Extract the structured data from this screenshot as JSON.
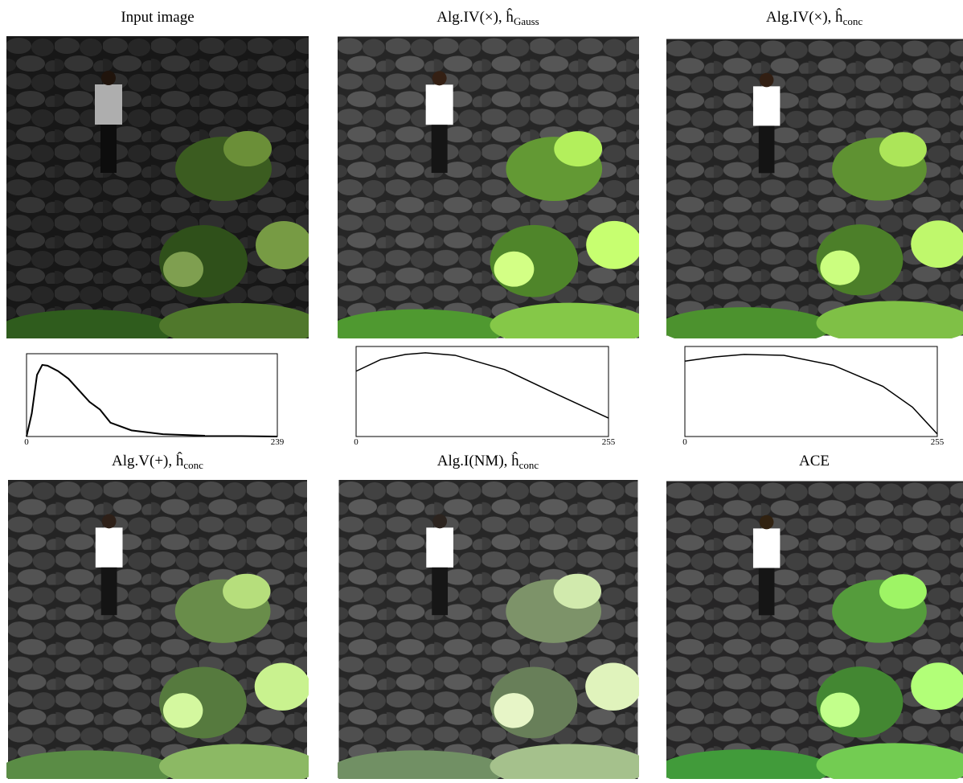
{
  "panels": [
    {
      "title": "Input image"
    },
    {
      "title": "Alg.IV(×), ĥ",
      "subscript": "Gauss"
    },
    {
      "title": "Alg.IV(×), ĥ",
      "subscript": "conc"
    },
    {
      "title": "Alg.V(+), ĥ",
      "subscript": "conc"
    },
    {
      "title": "Alg.I(NM), ĥ",
      "subscript": "conc"
    },
    {
      "title": "ACE"
    }
  ],
  "chart_data": [
    {
      "type": "line",
      "x": [
        0,
        5,
        10,
        15,
        20,
        30,
        40,
        50,
        60,
        70,
        80,
        100,
        130,
        170,
        239
      ],
      "values": [
        0,
        0.3,
        0.8,
        0.93,
        0.92,
        0.85,
        0.75,
        0.6,
        0.45,
        0.35,
        0.18,
        0.08,
        0.03,
        0.01,
        0
      ],
      "xlim": [
        0,
        239
      ],
      "xticks": [
        0,
        239
      ],
      "ylim": [
        0,
        1
      ],
      "color": "#000000"
    },
    {
      "type": "line",
      "x": [
        0,
        25,
        50,
        70,
        100,
        150,
        200,
        255
      ],
      "values": [
        0.78,
        0.92,
        0.98,
        1.0,
        0.97,
        0.8,
        0.52,
        0.22
      ],
      "xlim": [
        0,
        255
      ],
      "xticks": [
        0,
        255
      ],
      "ylim": [
        0,
        1
      ],
      "color": "#000000"
    },
    {
      "type": "line",
      "x": [
        0,
        30,
        60,
        100,
        150,
        200,
        230,
        255
      ],
      "values": [
        0.9,
        0.95,
        0.98,
        0.97,
        0.85,
        0.6,
        0.35,
        0.03
      ],
      "xlim": [
        0,
        255
      ],
      "xticks": [
        0,
        255
      ],
      "ylim": [
        0,
        1
      ],
      "color": "#000000"
    }
  ]
}
